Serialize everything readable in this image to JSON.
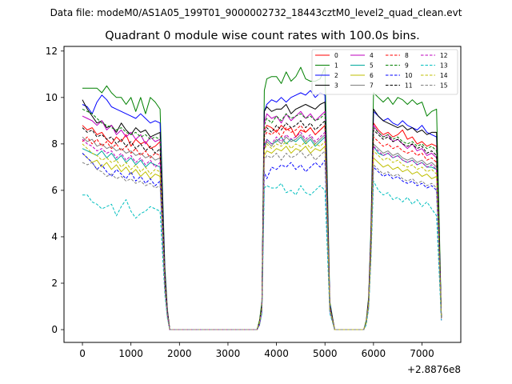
{
  "suptitle": "Data file: modeM0/AS1A05_199T01_9000002732_18443cztM0_level2_quad_clean.evt",
  "chart_data": {
    "type": "line",
    "title": "Quadrant 0 module wise count rates with 100.0s bins.",
    "xlabel": "",
    "ylabel": "",
    "xlim": [
      -380,
      7800
    ],
    "ylim": [
      -0.55,
      12.2
    ],
    "x_offset_label": "+2.8876e8",
    "xticks": [
      0,
      1000,
      2000,
      3000,
      4000,
      5000,
      6000,
      7000
    ],
    "xtick_labels": [
      "0",
      "1000",
      "2000",
      "3000",
      "4000",
      "5000",
      "6000",
      "7000"
    ],
    "yticks": [
      0,
      2,
      4,
      6,
      8,
      10,
      12
    ],
    "ytick_labels": [
      "0",
      "2",
      "4",
      "6",
      "8",
      "10",
      "12"
    ],
    "legend_position": "top-right",
    "legend_columns": 4,
    "x": [
      0,
      100,
      200,
      300,
      400,
      500,
      600,
      700,
      800,
      900,
      1000,
      1100,
      1200,
      1300,
      1400,
      1500,
      1600,
      1700,
      1750,
      1800,
      3600,
      3650,
      3700,
      3750,
      3800,
      3900,
      4000,
      4100,
      4200,
      4300,
      4400,
      4500,
      4600,
      4700,
      4800,
      4900,
      5000,
      5100,
      5200,
      5800,
      5850,
      5900,
      5950,
      6000,
      6100,
      6200,
      6300,
      6400,
      6500,
      6600,
      6700,
      6800,
      6900,
      7000,
      7100,
      7200,
      7300,
      7400
    ],
    "series": [
      {
        "name": "0",
        "color": "#ff0000",
        "dash": "solid",
        "values": [
          8.8,
          8.6,
          8.7,
          8.4,
          8.5,
          8.2,
          8.0,
          8.3,
          8.1,
          8.4,
          7.9,
          8.2,
          8.0,
          8.1,
          7.8,
          7.9,
          8.1,
          2.3,
          0.8,
          0,
          0,
          0.3,
          1.0,
          8.6,
          8.8,
          8.7,
          8.5,
          8.8,
          8.6,
          8.7,
          8.3,
          8.6,
          8.5,
          8.7,
          8.4,
          8.6,
          8.8,
          1.0,
          0,
          0,
          0.3,
          1.2,
          4.0,
          8.9,
          8.6,
          8.4,
          8.5,
          8.3,
          8.4,
          8.6,
          8.2,
          8.3,
          8.0,
          8.1,
          7.9,
          8.0,
          7.9,
          0.5
        ]
      },
      {
        "name": "1",
        "color": "#008000",
        "dash": "solid",
        "values": [
          10.4,
          10.4,
          10.4,
          10.4,
          10.2,
          10.5,
          10.2,
          10.0,
          10.0,
          9.7,
          10.0,
          9.4,
          10.0,
          9.3,
          10.0,
          9.8,
          9.5,
          2.7,
          0.9,
          0,
          0,
          0.4,
          1.2,
          10.3,
          10.8,
          10.9,
          10.9,
          10.6,
          11.1,
          10.7,
          10.9,
          11.3,
          10.8,
          10.7,
          10.7,
          10.8,
          11.3,
          1.2,
          0,
          0,
          0.4,
          1.4,
          4.5,
          10.2,
          10.0,
          9.8,
          10.0,
          9.7,
          10.0,
          9.9,
          9.7,
          9.9,
          9.7,
          9.8,
          9.2,
          9.4,
          9.5,
          0.6
        ]
      },
      {
        "name": "2",
        "color": "#0000ff",
        "dash": "solid",
        "values": [
          9.7,
          9.6,
          9.3,
          9.8,
          10.1,
          9.9,
          9.6,
          9.5,
          9.4,
          9.3,
          9.2,
          9.1,
          9.3,
          9.1,
          8.9,
          9.0,
          8.9,
          2.5,
          0.8,
          0,
          0,
          0.3,
          1.1,
          9.4,
          9.7,
          9.9,
          9.8,
          10.0,
          9.8,
          10.0,
          10.1,
          10.2,
          10.1,
          10.3,
          10.0,
          10.2,
          10.1,
          1.1,
          0,
          0,
          0.3,
          1.3,
          4.2,
          9.4,
          9.2,
          9.0,
          9.1,
          8.9,
          8.8,
          9.0,
          8.8,
          8.7,
          8.6,
          8.8,
          8.5,
          8.4,
          8.3,
          0.5
        ]
      },
      {
        "name": "3",
        "color": "#000000",
        "dash": "solid",
        "values": [
          9.9,
          9.5,
          9.2,
          8.9,
          9.0,
          8.7,
          8.8,
          8.5,
          8.9,
          8.6,
          8.4,
          8.7,
          8.5,
          8.6,
          8.3,
          8.4,
          8.5,
          2.4,
          0.8,
          0,
          0,
          0.3,
          1.1,
          9.4,
          9.6,
          9.4,
          9.5,
          9.5,
          9.7,
          9.3,
          9.5,
          9.6,
          9.7,
          9.6,
          9.5,
          9.7,
          9.8,
          1.0,
          0,
          0,
          0.3,
          1.3,
          4.1,
          9.5,
          9.2,
          9.0,
          8.9,
          8.8,
          8.7,
          8.8,
          8.6,
          8.7,
          8.5,
          8.6,
          8.4,
          8.5,
          8.5,
          0.5
        ]
      },
      {
        "name": "4",
        "color": "#bf00bf",
        "dash": "solid",
        "values": [
          9.2,
          9.1,
          9.0,
          8.8,
          9.0,
          8.6,
          8.8,
          8.4,
          8.6,
          8.3,
          8.5,
          8.2,
          8.4,
          8.0,
          8.3,
          8.1,
          8.2,
          2.3,
          0.8,
          0,
          0,
          0.3,
          1.0,
          8.9,
          9.3,
          9.1,
          9.2,
          8.9,
          9.3,
          9.0,
          9.2,
          9.4,
          9.1,
          9.3,
          9.0,
          9.2,
          9.4,
          1.0,
          0,
          0,
          0.3,
          1.2,
          4.0,
          8.8,
          8.5,
          8.3,
          8.4,
          8.1,
          8.2,
          8.0,
          7.8,
          8.0,
          7.7,
          7.8,
          7.5,
          7.6,
          7.4,
          0.5
        ]
      },
      {
        "name": "5",
        "color": "#00a89c",
        "dash": "solid",
        "values": [
          7.8,
          7.7,
          7.6,
          7.5,
          7.7,
          7.4,
          7.6,
          7.3,
          7.5,
          7.2,
          7.4,
          7.1,
          7.3,
          7.0,
          7.2,
          7.1,
          7.0,
          2.0,
          0.7,
          0,
          0,
          0.3,
          0.9,
          7.9,
          8.2,
          8.0,
          8.1,
          8.3,
          8.0,
          8.2,
          8.1,
          8.3,
          8.0,
          8.2,
          7.9,
          8.1,
          8.3,
          0.9,
          0,
          0,
          0.3,
          1.1,
          3.6,
          7.9,
          7.6,
          7.5,
          7.6,
          7.4,
          7.5,
          7.3,
          7.2,
          7.3,
          7.1,
          7.2,
          7.0,
          7.0,
          6.9,
          0.5
        ]
      },
      {
        "name": "6",
        "color": "#bfbf00",
        "dash": "solid",
        "values": [
          7.6,
          7.4,
          7.2,
          7.3,
          7.0,
          7.2,
          6.9,
          7.1,
          6.8,
          7.0,
          6.7,
          6.9,
          6.6,
          6.8,
          6.5,
          6.7,
          6.6,
          1.9,
          0.6,
          0,
          0,
          0.3,
          0.9,
          7.5,
          7.7,
          7.6,
          7.8,
          7.7,
          7.9,
          7.6,
          7.8,
          7.7,
          7.9,
          7.6,
          7.8,
          7.7,
          7.9,
          0.9,
          0,
          0,
          0.3,
          1.0,
          3.4,
          7.4,
          7.2,
          7.0,
          7.1,
          6.9,
          7.0,
          6.8,
          6.9,
          6.7,
          6.8,
          6.6,
          6.7,
          6.5,
          6.6,
          0.5
        ]
      },
      {
        "name": "7",
        "color": "#7f7f7f",
        "dash": "solid",
        "values": [
          8.3,
          8.1,
          8.2,
          7.9,
          8.0,
          7.8,
          7.9,
          7.7,
          7.8,
          7.6,
          7.7,
          7.5,
          7.6,
          7.4,
          7.5,
          7.3,
          7.4,
          2.1,
          0.7,
          0,
          0,
          0.3,
          1.0,
          7.8,
          8.1,
          7.9,
          8.2,
          8.0,
          8.3,
          8.1,
          8.2,
          8.4,
          8.1,
          8.3,
          8.0,
          8.2,
          8.4,
          0.9,
          0,
          0,
          0.3,
          1.1,
          3.7,
          8.0,
          7.8,
          7.6,
          7.7,
          7.5,
          7.6,
          7.4,
          7.3,
          7.4,
          7.2,
          7.3,
          7.1,
          7.2,
          7.0,
          0.5
        ]
      },
      {
        "name": "8",
        "color": "#ff0000",
        "dash": "dashed",
        "values": [
          8.1,
          8.3,
          8.0,
          8.2,
          7.9,
          8.1,
          7.8,
          8.0,
          7.7,
          7.9,
          7.6,
          7.8,
          7.5,
          7.7,
          7.4,
          7.6,
          7.5,
          2.1,
          0.7,
          0,
          0,
          0.3,
          1.0,
          8.3,
          8.5,
          8.4,
          8.6,
          8.3,
          8.7,
          8.5,
          8.6,
          8.8,
          8.5,
          8.7,
          8.4,
          8.6,
          8.8,
          1.0,
          0,
          0,
          0.3,
          1.2,
          3.9,
          8.3,
          8.1,
          7.9,
          8.0,
          7.8,
          7.9,
          7.7,
          7.6,
          7.7,
          7.5,
          7.6,
          7.3,
          7.4,
          7.2,
          0.5
        ]
      },
      {
        "name": "9",
        "color": "#008000",
        "dash": "dashed",
        "values": [
          9.5,
          9.4,
          9.3,
          9.1,
          8.9,
          8.8,
          8.7,
          8.6,
          8.7,
          8.5,
          8.4,
          8.5,
          8.3,
          8.4,
          8.2,
          8.3,
          8.2,
          2.3,
          0.8,
          0,
          0,
          0.3,
          1.1,
          8.8,
          9.1,
          8.9,
          9.2,
          9.0,
          9.3,
          9.1,
          9.2,
          9.3,
          9.1,
          9.2,
          9.0,
          9.1,
          9.3,
          1.0,
          0,
          0,
          0.3,
          1.2,
          4.0,
          8.7,
          8.5,
          8.3,
          8.4,
          8.2,
          8.3,
          8.1,
          8.0,
          8.1,
          7.9,
          8.0,
          7.8,
          7.9,
          7.7,
          0.5
        ]
      },
      {
        "name": "10",
        "color": "#0000ff",
        "dash": "dashed",
        "values": [
          7.6,
          7.4,
          7.2,
          6.9,
          7.1,
          6.8,
          6.6,
          6.9,
          6.7,
          6.5,
          6.8,
          6.4,
          6.6,
          6.3,
          6.5,
          6.2,
          6.4,
          1.8,
          0.6,
          0,
          0,
          0.2,
          0.8,
          6.8,
          6.5,
          7.0,
          6.9,
          7.1,
          7.0,
          7.2,
          6.9,
          7.1,
          6.8,
          7.0,
          7.2,
          7.0,
          7.3,
          0.8,
          0,
          0,
          0.3,
          1.0,
          3.3,
          7.0,
          6.8,
          6.6,
          6.7,
          6.5,
          6.6,
          6.4,
          6.3,
          6.4,
          6.2,
          6.3,
          6.1,
          6.2,
          6.0,
          0.4
        ]
      },
      {
        "name": "11",
        "color": "#000000",
        "dash": "dashed",
        "values": [
          8.7,
          8.5,
          8.6,
          8.3,
          8.4,
          8.2,
          8.3,
          8.0,
          8.2,
          7.9,
          8.1,
          7.8,
          8.0,
          7.7,
          7.9,
          7.6,
          7.8,
          2.2,
          0.7,
          0,
          0,
          0.3,
          1.0,
          8.4,
          8.7,
          8.5,
          8.8,
          8.6,
          8.9,
          8.7,
          8.8,
          9.0,
          8.7,
          8.9,
          8.6,
          8.8,
          9.0,
          1.0,
          0,
          0,
          0.3,
          1.2,
          4.0,
          8.6,
          8.4,
          8.2,
          8.3,
          8.1,
          8.2,
          8.0,
          7.9,
          8.0,
          7.8,
          7.9,
          7.6,
          7.7,
          7.5,
          0.5
        ]
      },
      {
        "name": "12",
        "color": "#bf00bf",
        "dash": "dashed",
        "values": [
          8.2,
          8.0,
          7.9,
          7.7,
          7.8,
          7.6,
          7.7,
          7.4,
          7.6,
          7.3,
          7.5,
          7.2,
          7.4,
          7.1,
          7.3,
          7.0,
          7.2,
          2.0,
          0.7,
          0,
          0,
          0.3,
          0.9,
          7.9,
          8.2,
          8.0,
          8.3,
          8.1,
          8.4,
          8.2,
          8.3,
          8.5,
          8.2,
          8.4,
          8.1,
          8.3,
          8.5,
          0.9,
          0,
          0,
          0.3,
          1.1,
          3.7,
          7.9,
          7.7,
          7.5,
          7.6,
          7.4,
          7.5,
          7.3,
          7.2,
          7.3,
          7.1,
          7.2,
          7.0,
          7.1,
          6.9,
          0.5
        ]
      },
      {
        "name": "13",
        "color": "#00bfbf",
        "dash": "dashed",
        "values": [
          5.8,
          5.8,
          5.5,
          5.4,
          5.2,
          5.3,
          5.4,
          4.9,
          5.3,
          5.6,
          5.1,
          4.8,
          5.0,
          5.1,
          5.3,
          5.2,
          5.1,
          1.5,
          0.5,
          0,
          0,
          0.2,
          0.7,
          6.1,
          6.2,
          6.1,
          6.1,
          6.3,
          5.9,
          6.0,
          5.8,
          6.2,
          5.9,
          5.8,
          6.0,
          6.2,
          6.0,
          0.7,
          0,
          0,
          0.2,
          0.9,
          3.1,
          6.4,
          6.0,
          5.8,
          5.9,
          5.6,
          5.7,
          5.5,
          5.7,
          5.4,
          5.6,
          5.3,
          5.5,
          5.2,
          4.9,
          0.4
        ]
      },
      {
        "name": "14",
        "color": "#bfbf00",
        "dash": "dashed",
        "values": [
          8.0,
          7.8,
          7.6,
          7.5,
          7.3,
          7.4,
          7.2,
          7.3,
          7.0,
          7.2,
          6.9,
          7.1,
          6.8,
          7.0,
          6.7,
          6.9,
          6.8,
          1.9,
          0.6,
          0,
          0,
          0.3,
          0.9,
          7.7,
          8.0,
          7.8,
          8.0,
          7.9,
          8.1,
          7.8,
          8.0,
          7.9,
          8.1,
          7.8,
          8.0,
          7.9,
          8.1,
          0.9,
          0,
          0,
          0.3,
          1.1,
          3.5,
          7.7,
          7.5,
          7.3,
          7.4,
          7.2,
          7.3,
          7.1,
          7.0,
          7.1,
          6.9,
          7.0,
          6.8,
          6.9,
          6.7,
          0.5
        ]
      },
      {
        "name": "15",
        "color": "#7f7f7f",
        "dash": "dashed",
        "values": [
          7.2,
          7.1,
          7.2,
          6.9,
          6.8,
          6.6,
          6.7,
          6.5,
          6.6,
          6.4,
          6.5,
          6.3,
          6.4,
          6.2,
          6.3,
          6.1,
          6.2,
          1.7,
          0.6,
          0,
          0,
          0.2,
          0.8,
          7.3,
          7.5,
          7.4,
          7.6,
          7.3,
          7.6,
          7.4,
          7.5,
          7.7,
          7.4,
          7.6,
          7.3,
          7.5,
          7.7,
          0.8,
          0,
          0,
          0.3,
          1.0,
          3.3,
          7.1,
          6.9,
          6.7,
          6.8,
          6.6,
          6.7,
          6.5,
          6.4,
          6.5,
          6.3,
          6.4,
          6.2,
          6.3,
          6.1,
          0.4
        ]
      }
    ]
  }
}
